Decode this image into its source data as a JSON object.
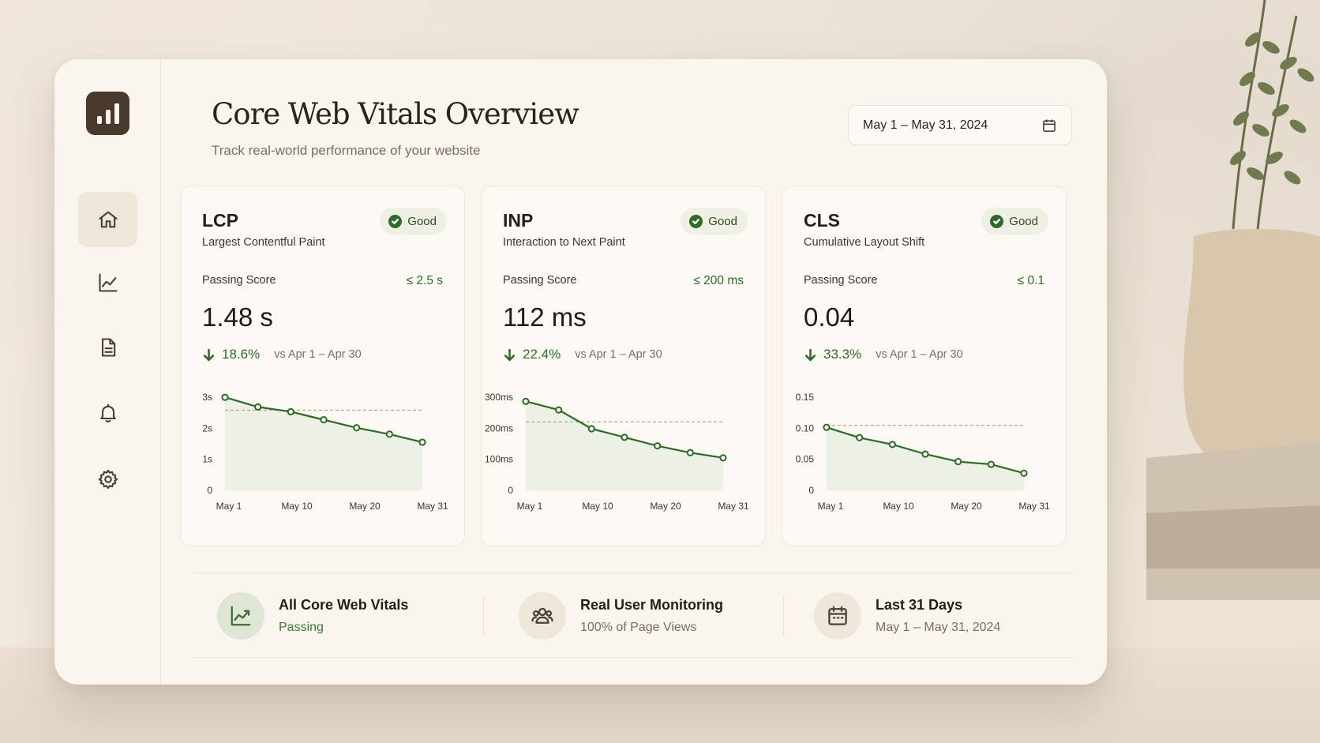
{
  "header": {
    "title": "Core Web Vitals Overview",
    "subtitle": "Track real-world performance of your website",
    "date_range": "May 1 – May 31, 2024"
  },
  "sidebar": {
    "items": [
      {
        "name": "home",
        "icon": "home-icon",
        "active": true
      },
      {
        "name": "analytics",
        "icon": "line-chart-icon",
        "active": false
      },
      {
        "name": "reports",
        "icon": "document-icon",
        "active": false
      },
      {
        "name": "notifications",
        "icon": "bell-icon",
        "active": false
      },
      {
        "name": "settings",
        "icon": "gear-icon",
        "active": false
      }
    ]
  },
  "cards": [
    {
      "abbr": "LCP",
      "name": "Largest Contentful Paint",
      "badge": "Good",
      "passing_label": "Passing Score",
      "passing_value": "≤ 2.5 s",
      "value": "1.48 s",
      "delta": "18.6%",
      "compare": "vs Apr 1 – Apr 30"
    },
    {
      "abbr": "INP",
      "name": "Interaction to Next Paint",
      "badge": "Good",
      "passing_label": "Passing Score",
      "passing_value": "≤ 200 ms",
      "value": "112 ms",
      "delta": "22.4%",
      "compare": "vs Apr 1 – Apr 30"
    },
    {
      "abbr": "CLS",
      "name": "Cumulative Layout Shift",
      "badge": "Good",
      "passing_label": "Passing Score",
      "passing_value": "≤ 0.1",
      "value": "0.04",
      "delta": "33.3%",
      "compare": "vs Apr 1 – Apr 30"
    }
  ],
  "chart_data": [
    {
      "type": "line",
      "x": [
        "May 1",
        "",
        "",
        "",
        "",
        "",
        "May 31"
      ],
      "x_ticks": [
        "May 1",
        "May 10",
        "May 20",
        "May 31"
      ],
      "y_ticks": [
        "0",
        "1s",
        "2s",
        "3s"
      ],
      "ylim": [
        0,
        3.2
      ],
      "threshold": 2.5,
      "series": [
        {
          "values": [
            2.9,
            2.6,
            2.45,
            2.2,
            1.95,
            1.75,
            1.5
          ]
        }
      ]
    },
    {
      "type": "line",
      "x": [
        "May 1",
        "",
        "",
        "",
        "",
        "",
        "May 31"
      ],
      "x_ticks": [
        "May 1",
        "May 10",
        "May 20",
        "May 31"
      ],
      "y_ticks": [
        "0",
        "100ms",
        "200ms",
        "300ms"
      ],
      "ylim": [
        0,
        300
      ],
      "threshold": 200,
      "series": [
        {
          "values": [
            260,
            235,
            180,
            155,
            130,
            110,
            95
          ]
        }
      ]
    },
    {
      "type": "line",
      "x": [
        "May 1",
        "",
        "",
        "",
        "",
        "",
        "May 31"
      ],
      "x_ticks": [
        "May 1",
        "May 10",
        "May 20",
        "May 31"
      ],
      "y_ticks": [
        "0",
        "0.05",
        "0.10",
        "0.15"
      ],
      "ylim": [
        0,
        0.15
      ],
      "threshold": 0.095,
      "series": [
        {
          "values": [
            0.092,
            0.077,
            0.067,
            0.053,
            0.042,
            0.038,
            0.025
          ]
        }
      ]
    }
  ],
  "summary": [
    {
      "title": "All Core Web Vitals",
      "sub": "Passing",
      "icon": "trend-up-icon"
    },
    {
      "title": "Real User Monitoring",
      "sub": "100% of Page Views",
      "icon": "users-icon"
    },
    {
      "title": "Last 31 Days",
      "sub": "May 1 – May 31, 2024",
      "icon": "calendar-icon"
    }
  ],
  "colors": {
    "accent_green": "#2d6a28",
    "brand_dark": "#4a3a2e",
    "area_fill": "#e8eee0"
  }
}
